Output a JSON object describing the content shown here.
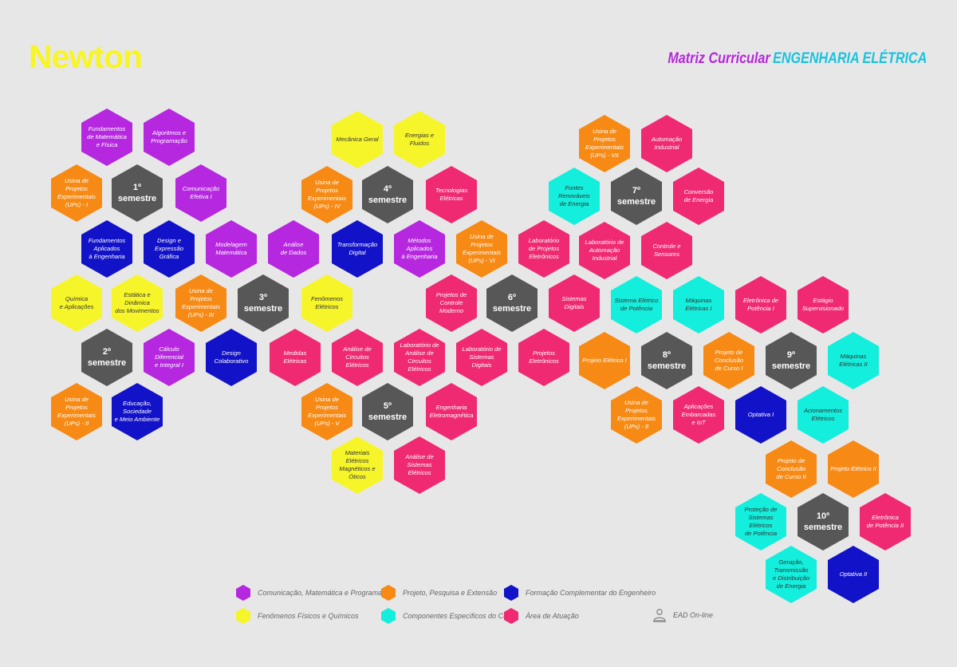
{
  "header": {
    "logo": "Newton",
    "title_prefix": "Matriz Curricular",
    "title_course": "ENGENHARIA ELÉTRICA"
  },
  "colors": {
    "magenta": "#b628e0",
    "orange": "#f78a14",
    "blue": "#1212c8",
    "yellow": "#f6f52a",
    "cyan": "#14eedc",
    "pink": "#f02a72",
    "gray": "#575757",
    "background": "#e8e7e8",
    "title_purple": "#b428d8",
    "title_cyan": "#19c3dd"
  },
  "hexes": [
    {
      "label": "Fundamentos\nde Matemática\ne Física",
      "color": "magenta"
    },
    {
      "label": "Algoritmos e\nProgramação",
      "color": "magenta"
    },
    {
      "label": "Usina de Projetos\nExperimentais\n(UPs) - I",
      "color": "orange"
    },
    {
      "label": "1º semestre",
      "color": "gray",
      "semester": true
    },
    {
      "label": "Comunicação\nEfetiva I",
      "color": "magenta"
    },
    {
      "label": "Fundamentos\nAplicados\nà Engenharia",
      "color": "blue"
    },
    {
      "label": "Design e\nExpressão\nGráfica",
      "color": "blue"
    },
    {
      "label": "Modelagem\nMatemática",
      "color": "magenta"
    },
    {
      "label": "Química\ne Aplicações",
      "color": "yellow"
    },
    {
      "label": "Estática e\nDinâmica\ndos Movimentos",
      "color": "yellow"
    },
    {
      "label": "Usina de Projetos\nExperimentais\n(UPs) - III",
      "color": "orange"
    },
    {
      "label": "3º semestre",
      "color": "gray",
      "semester": true
    },
    {
      "label": "2º semestre",
      "color": "gray",
      "semester": true
    },
    {
      "label": "Cálculo Diferencial\ne Integral I",
      "color": "magenta"
    },
    {
      "label": "Design Colaborativo",
      "color": "blue"
    },
    {
      "label": "Usina de Projetos\nExperimentais\n(UPs) - II",
      "color": "orange"
    },
    {
      "label": "Educação,\nSociedade\ne Meio Ambiente",
      "color": "blue"
    },
    {
      "label": "Mecânica Geral",
      "color": "yellow"
    },
    {
      "label": "Energias e Fluidos",
      "color": "yellow"
    },
    {
      "label": "Usina de Projetos\nExperimentais\n(UPs) - IV",
      "color": "orange"
    },
    {
      "label": "4º semestre",
      "color": "gray",
      "semester": true
    },
    {
      "label": "Tecnologias Elétricas",
      "color": "pink"
    },
    {
      "label": "Análise\nde Dados",
      "color": "magenta"
    },
    {
      "label": "Transformação Digital",
      "color": "blue"
    },
    {
      "label": "Métodos Aplicados\nà Engenharia",
      "color": "magenta"
    },
    {
      "label": "Fenômenos\nElétricos",
      "color": "yellow"
    },
    {
      "label": "Medidas Elétricas",
      "color": "pink"
    },
    {
      "label": "Análise de\nCircuitos\nElétricos",
      "color": "pink"
    },
    {
      "label": "Laboratório de\nAnálise de\nCircuitos Elétricos",
      "color": "pink"
    },
    {
      "label": "Usina de Projetos\nExperimentais\n(UPs) - V",
      "color": "orange"
    },
    {
      "label": "5º semestre",
      "color": "gray",
      "semester": true
    },
    {
      "label": "Engenharia\nEletromagnética",
      "color": "pink"
    },
    {
      "label": "Materiais Elétricos\nMagnéticos e Óticos",
      "color": "yellow"
    },
    {
      "label": "Análise de\nSistemas Elétricos",
      "color": "pink"
    },
    {
      "label": "Usina de Projetos\nExperimentais\n(UPs) - VI",
      "color": "orange"
    },
    {
      "label": "Projetos de\nControle Moderno",
      "color": "pink"
    },
    {
      "label": "6º semestre",
      "color": "gray",
      "semester": true
    },
    {
      "label": "Laboratório de\nSistemas Digitais",
      "color": "pink"
    },
    {
      "label": "Projetos Eletrônicos",
      "color": "pink"
    },
    {
      "label": "Laboratório\nde Projetos\nEletrônicos",
      "color": "pink"
    },
    {
      "label": "Sistemas Digitais",
      "color": "pink"
    },
    {
      "label": "Usina de Projetos\nExperimentais\n(UPs) - VII",
      "color": "orange"
    },
    {
      "label": "Automação\nIndustrial",
      "color": "pink"
    },
    {
      "label": "Fontes Renováveis\nde Energia",
      "color": "cyan"
    },
    {
      "label": "7º semestre",
      "color": "gray",
      "semester": true
    },
    {
      "label": "Conversão\nde Energia",
      "color": "pink"
    },
    {
      "label": "Laboratório de\nAutomação\nIndustrial",
      "color": "pink"
    },
    {
      "label": "Controle e Sensores",
      "color": "pink"
    },
    {
      "label": "Sistema Elétrico\nde Potência",
      "color": "cyan"
    },
    {
      "label": "Máquinas\nElétricas I",
      "color": "cyan"
    },
    {
      "label": "Projeto Elétrico I",
      "color": "orange"
    },
    {
      "label": "8º semestre",
      "color": "gray",
      "semester": true
    },
    {
      "label": "Usina de Projetos\nExperimentais\n(UPs) - 8",
      "color": "orange"
    },
    {
      "label": "Aplicações\nEmbarcadas\ne IoT",
      "color": "pink"
    },
    {
      "label": "Eletrônica de\nPotência I",
      "color": "pink"
    },
    {
      "label": "Estágio\nSupervisionado",
      "color": "pink"
    },
    {
      "label": "Projeto de\nConclusão\nde Curso I",
      "color": "orange"
    },
    {
      "label": "9º semestre",
      "color": "gray",
      "semester": true
    },
    {
      "label": "Máquinas Elétricas II",
      "color": "cyan"
    },
    {
      "label": "Optativa I",
      "color": "blue"
    },
    {
      "label": "Acionamentos Elétricos",
      "color": "cyan"
    },
    {
      "label": "Projeto de\nConclusão\nde Curso II",
      "color": "orange"
    },
    {
      "label": "Projeto Elétrico II",
      "color": "orange"
    },
    {
      "label": "Proteção de\nSistemas Elétricos\nde Potência",
      "color": "cyan"
    },
    {
      "label": "10º semestre",
      "color": "gray",
      "semester": true
    },
    {
      "label": "Eletrônica\nde Potência II",
      "color": "pink"
    },
    {
      "label": "Geração,\nTransmissão\ne Distribuição\nde Energia",
      "color": "cyan"
    },
    {
      "label": "Optativa II",
      "color": "blue"
    }
  ],
  "legend": [
    {
      "label": "Comunicação, Matemática e Programação",
      "color": "magenta"
    },
    {
      "label": "Projeto, Pesquisa e Extensão",
      "color": "orange"
    },
    {
      "label": "Formação Complementar do Engenheiro",
      "color": "blue"
    },
    {
      "label": "Fenômenos Físicos e Químicos",
      "color": "yellow"
    },
    {
      "label": "Componentes Específicos do Curso",
      "color": "cyan"
    },
    {
      "label": "Área de Atuação",
      "color": "pink"
    },
    {
      "label": "EAD On-line",
      "icon": "online-student-icon"
    }
  ]
}
